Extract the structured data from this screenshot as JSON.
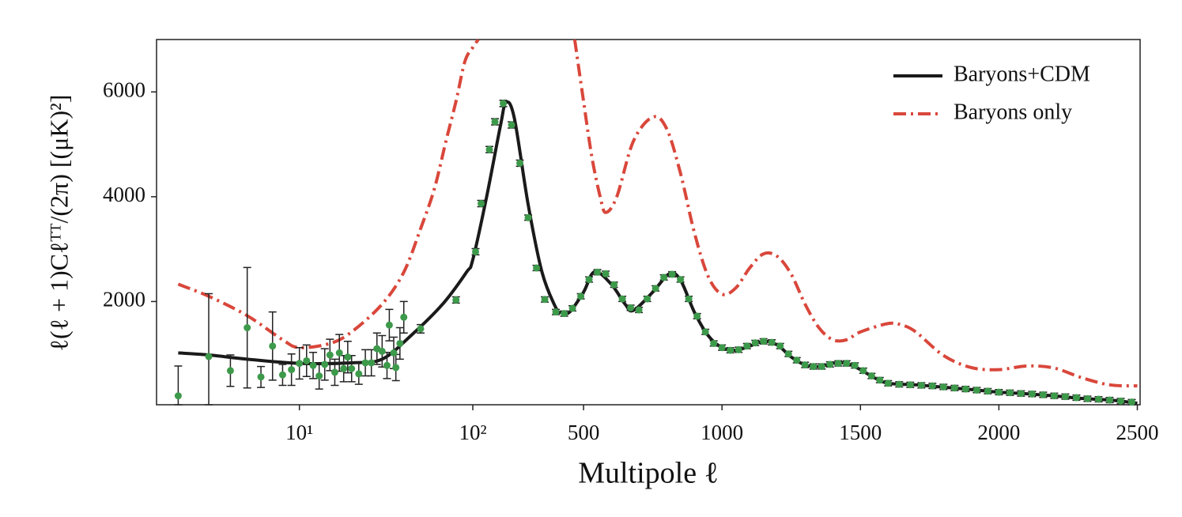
{
  "chart_data": {
    "type": "line",
    "xlabel": "Multipole ℓ",
    "ylabel": "ℓ(ℓ + 1)Cℓᵀᵀ/(2π) [(μK)²]",
    "xscale": "log-linear",
    "xbreak": 100,
    "xlim": [
      1.5,
      2510
    ],
    "ylim": [
      30,
      7000
    ],
    "xticks": [
      {
        "value": 10,
        "label": "10¹"
      },
      {
        "value": 100,
        "label": "10²"
      },
      500,
      1000,
      1500,
      2000,
      2500
    ],
    "yticks": [
      2000,
      4000,
      6000
    ],
    "legend": "upper right",
    "series": [
      {
        "name": "Baryons+CDM",
        "color": "#1a1a1a",
        "style": "solid",
        "x": [
          2,
          3,
          5,
          10,
          20,
          30,
          44,
          67,
          92,
          100,
          150,
          200,
          220,
          250,
          300,
          350,
          400,
          420,
          450,
          500,
          540,
          600,
          650,
          680,
          750,
          810,
          850,
          900,
          950,
          1000,
          1050,
          1100,
          1150,
          1200,
          1250,
          1300,
          1350,
          1400,
          1450,
          1500,
          1550,
          1600,
          1700,
          1800,
          1900,
          2000,
          2100,
          2200,
          2300,
          2400,
          2500
        ],
        "values": [
          1020,
          980,
          900,
          820,
          830,
          900,
          1350,
          1950,
          2560,
          2800,
          4000,
          5360,
          5800,
          5500,
          3850,
          2560,
          1880,
          1790,
          1800,
          2180,
          2570,
          2330,
          1950,
          1830,
          2180,
          2530,
          2410,
          1800,
          1350,
          1120,
          1070,
          1150,
          1240,
          1170,
          940,
          790,
          760,
          820,
          820,
          700,
          545,
          440,
          410,
          365,
          320,
          270,
          240,
          200,
          150,
          120,
          60
        ]
      },
      {
        "name": "Baryons only",
        "color": "#d9473b",
        "style": "dashdot",
        "x": [
          2,
          3,
          5,
          8,
          10,
          15,
          20,
          30,
          40,
          50,
          60,
          70,
          80,
          90,
          100,
          120,
          300,
          468,
          500,
          530,
          560,
          580,
          620,
          680,
          750,
          800,
          850,
          900,
          950,
          1000,
          1050,
          1100,
          1150,
          1200,
          1250,
          1300,
          1350,
          1400,
          1450,
          1500,
          1600,
          1650,
          1700,
          1800,
          1900,
          2000,
          2100,
          2200,
          2300,
          2400,
          2500
        ],
        "values": [
          2330,
          2100,
          1730,
          1270,
          1120,
          1200,
          1420,
          1950,
          2560,
          3390,
          4150,
          5060,
          5820,
          6580,
          6850,
          7000,
          null,
          7000,
          5820,
          4760,
          4000,
          3700,
          4000,
          5060,
          5520,
          5300,
          4450,
          3320,
          2480,
          2140,
          2260,
          2640,
          2910,
          2860,
          2520,
          1950,
          1500,
          1270,
          1270,
          1420,
          1580,
          1550,
          1420,
          970,
          740,
          700,
          770,
          730,
          545,
          410,
          390
        ]
      }
    ],
    "points": {
      "color": "#3d9a4b",
      "x": [
        2,
        3,
        4,
        5,
        6,
        7,
        8,
        9,
        10,
        11,
        12,
        13,
        14,
        15,
        16,
        17,
        18,
        19,
        20,
        22,
        24,
        26,
        28,
        30,
        32,
        33,
        35,
        36,
        38,
        40,
        50,
        80,
        110,
        130,
        160,
        180,
        210,
        240,
        270,
        300,
        330,
        360,
        400,
        430,
        460,
        490,
        520,
        550,
        580,
        610,
        640,
        670,
        700,
        730,
        760,
        790,
        820,
        850,
        880,
        910,
        940,
        970,
        1000,
        1030,
        1060,
        1090,
        1120,
        1150,
        1180,
        1210,
        1240,
        1270,
        1300,
        1330,
        1360,
        1390,
        1420,
        1450,
        1480,
        1510,
        1540,
        1570,
        1600,
        1640,
        1680,
        1720,
        1760,
        1800,
        1840,
        1880,
        1920,
        1960,
        2000,
        2040,
        2080,
        2120,
        2160,
        2200,
        2240,
        2280,
        2320,
        2360,
        2400,
        2440,
        2480
      ],
      "values": [
        200,
        950,
        680,
        1500,
        560,
        1150,
        600,
        700,
        820,
        870,
        780,
        580,
        800,
        980,
        650,
        1020,
        720,
        940,
        720,
        620,
        830,
        830,
        1100,
        1050,
        780,
        1550,
        1020,
        740,
        1200,
        1700,
        1480,
        2030,
        2950,
        3870,
        4900,
        5430,
        5780,
        5370,
        4640,
        3600,
        2640,
        2040,
        1800,
        1770,
        1870,
        2100,
        2420,
        2560,
        2530,
        2320,
        2050,
        1880,
        1840,
        2050,
        2250,
        2460,
        2520,
        2420,
        2050,
        1720,
        1420,
        1200,
        1120,
        1070,
        1080,
        1150,
        1210,
        1240,
        1220,
        1150,
        1000,
        880,
        790,
        760,
        760,
        800,
        820,
        820,
        780,
        680,
        580,
        500,
        440,
        420,
        410,
        400,
        390,
        370,
        350,
        330,
        310,
        290,
        270,
        260,
        245,
        235,
        220,
        200,
        185,
        165,
        145,
        135,
        120,
        100,
        80
      ],
      "errors": [
        570,
        1200,
        300,
        1150,
        200,
        650,
        200,
        300,
        300,
        300,
        250,
        250,
        300,
        300,
        250,
        350,
        250,
        300,
        250,
        200,
        250,
        250,
        300,
        300,
        250,
        300,
        300,
        250,
        300,
        300,
        80,
        60,
        60,
        60,
        60,
        60,
        60,
        60,
        60,
        50,
        50,
        50,
        50,
        50,
        50,
        50,
        50,
        50,
        50,
        50,
        50,
        50,
        50,
        50,
        50,
        50,
        50,
        50,
        50,
        50,
        50,
        50,
        50,
        50,
        50,
        50,
        50,
        50,
        50,
        50,
        50,
        50,
        50,
        50,
        50,
        50,
        50,
        50,
        50,
        50,
        50,
        50,
        50,
        50,
        50,
        50,
        50,
        50,
        50,
        50,
        50,
        50,
        50,
        50,
        50,
        50,
        50,
        50,
        50,
        50,
        50,
        50,
        50,
        50,
        50
      ]
    }
  }
}
